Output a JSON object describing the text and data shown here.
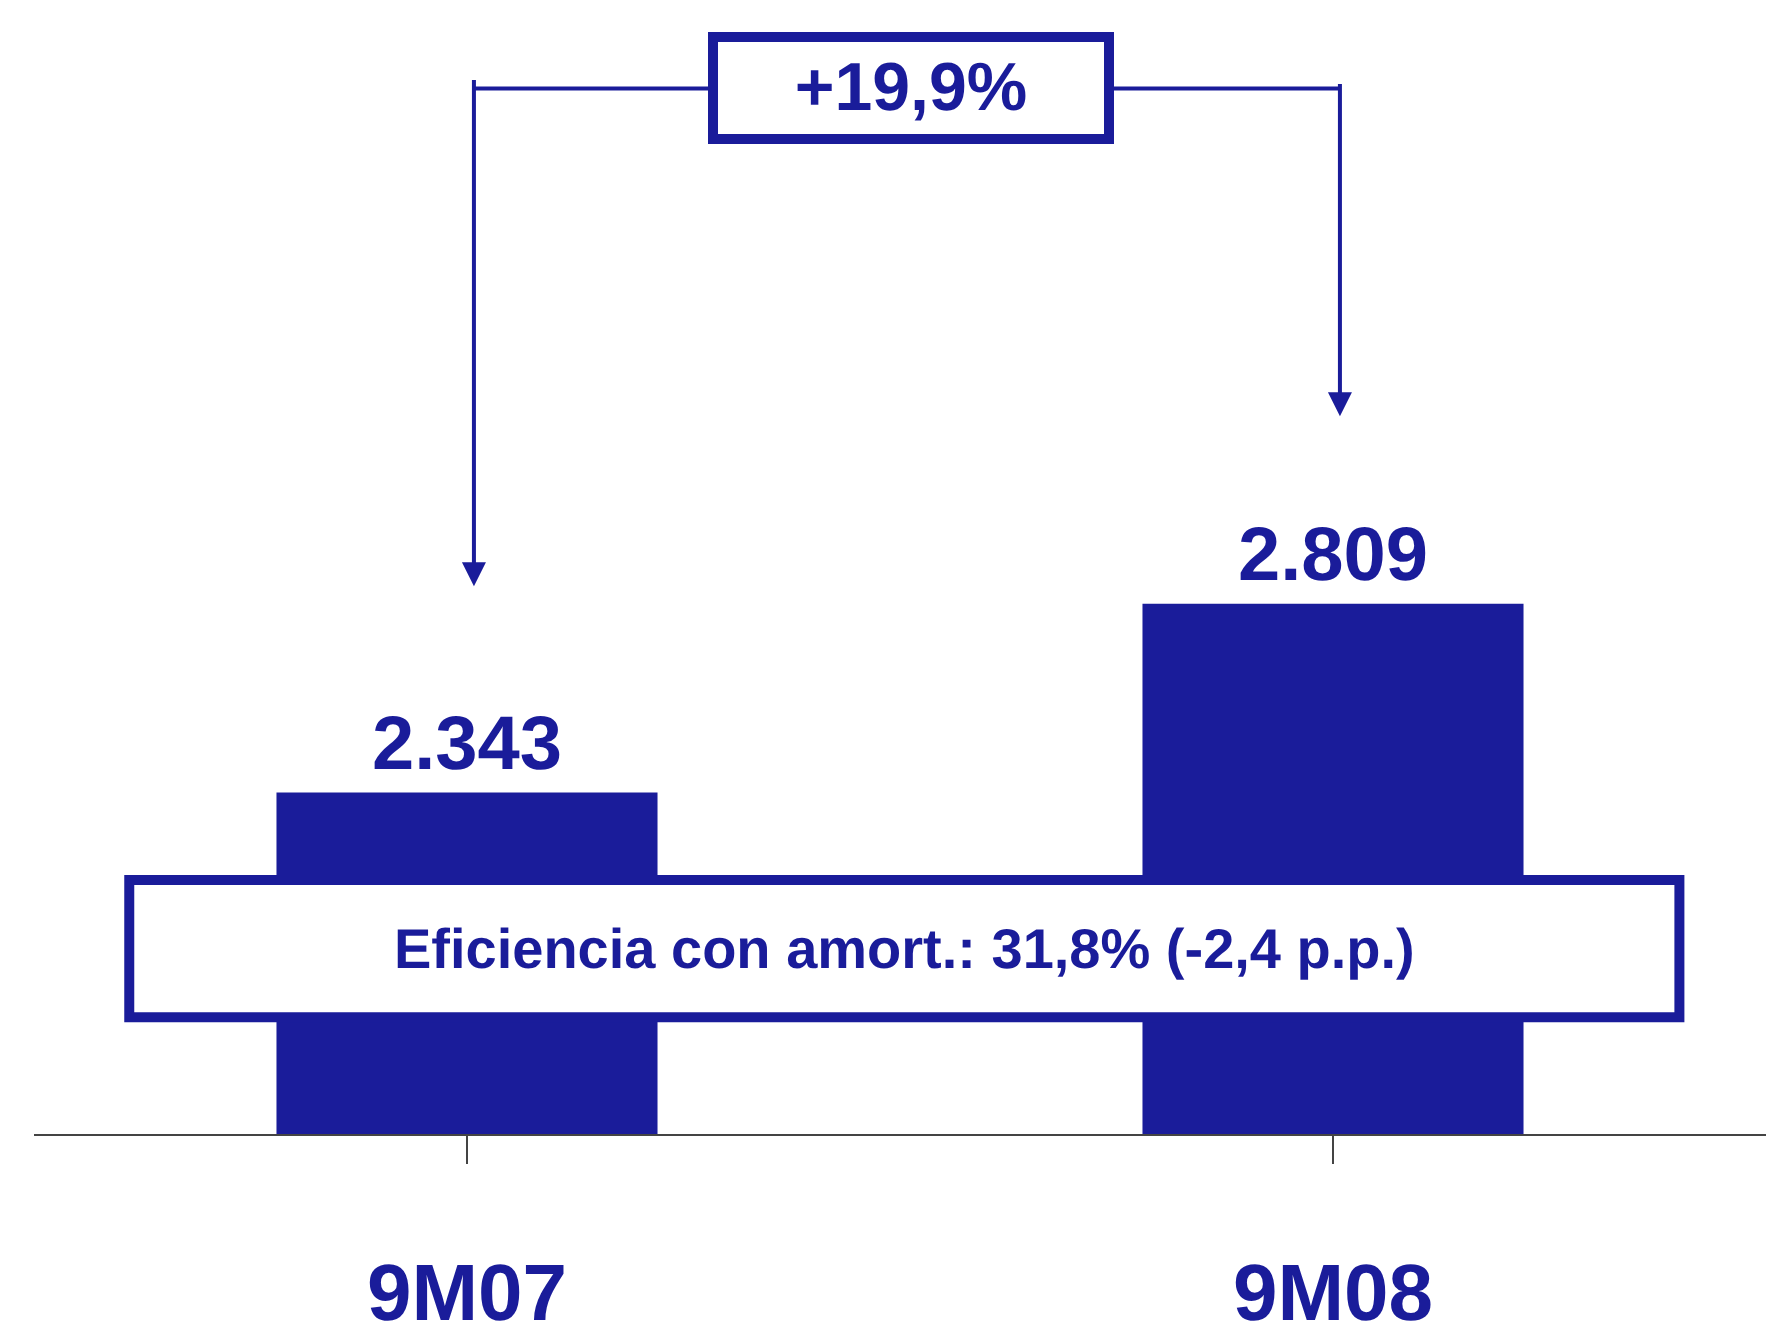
{
  "chart_data": {
    "type": "bar",
    "categories": [
      "9M07",
      "9M08"
    ],
    "values": [
      2343,
      2809
    ],
    "value_labels": [
      "2.343",
      "2.809"
    ],
    "color": "#1a1c9a",
    "ylim": [
      1500,
      4300
    ],
    "tick_labels": "x",
    "legend": false,
    "annotations": [
      "+19,9%",
      "Eficiencia con amort.: 31,8% (-2,4 p.p.)"
    ]
  }
}
